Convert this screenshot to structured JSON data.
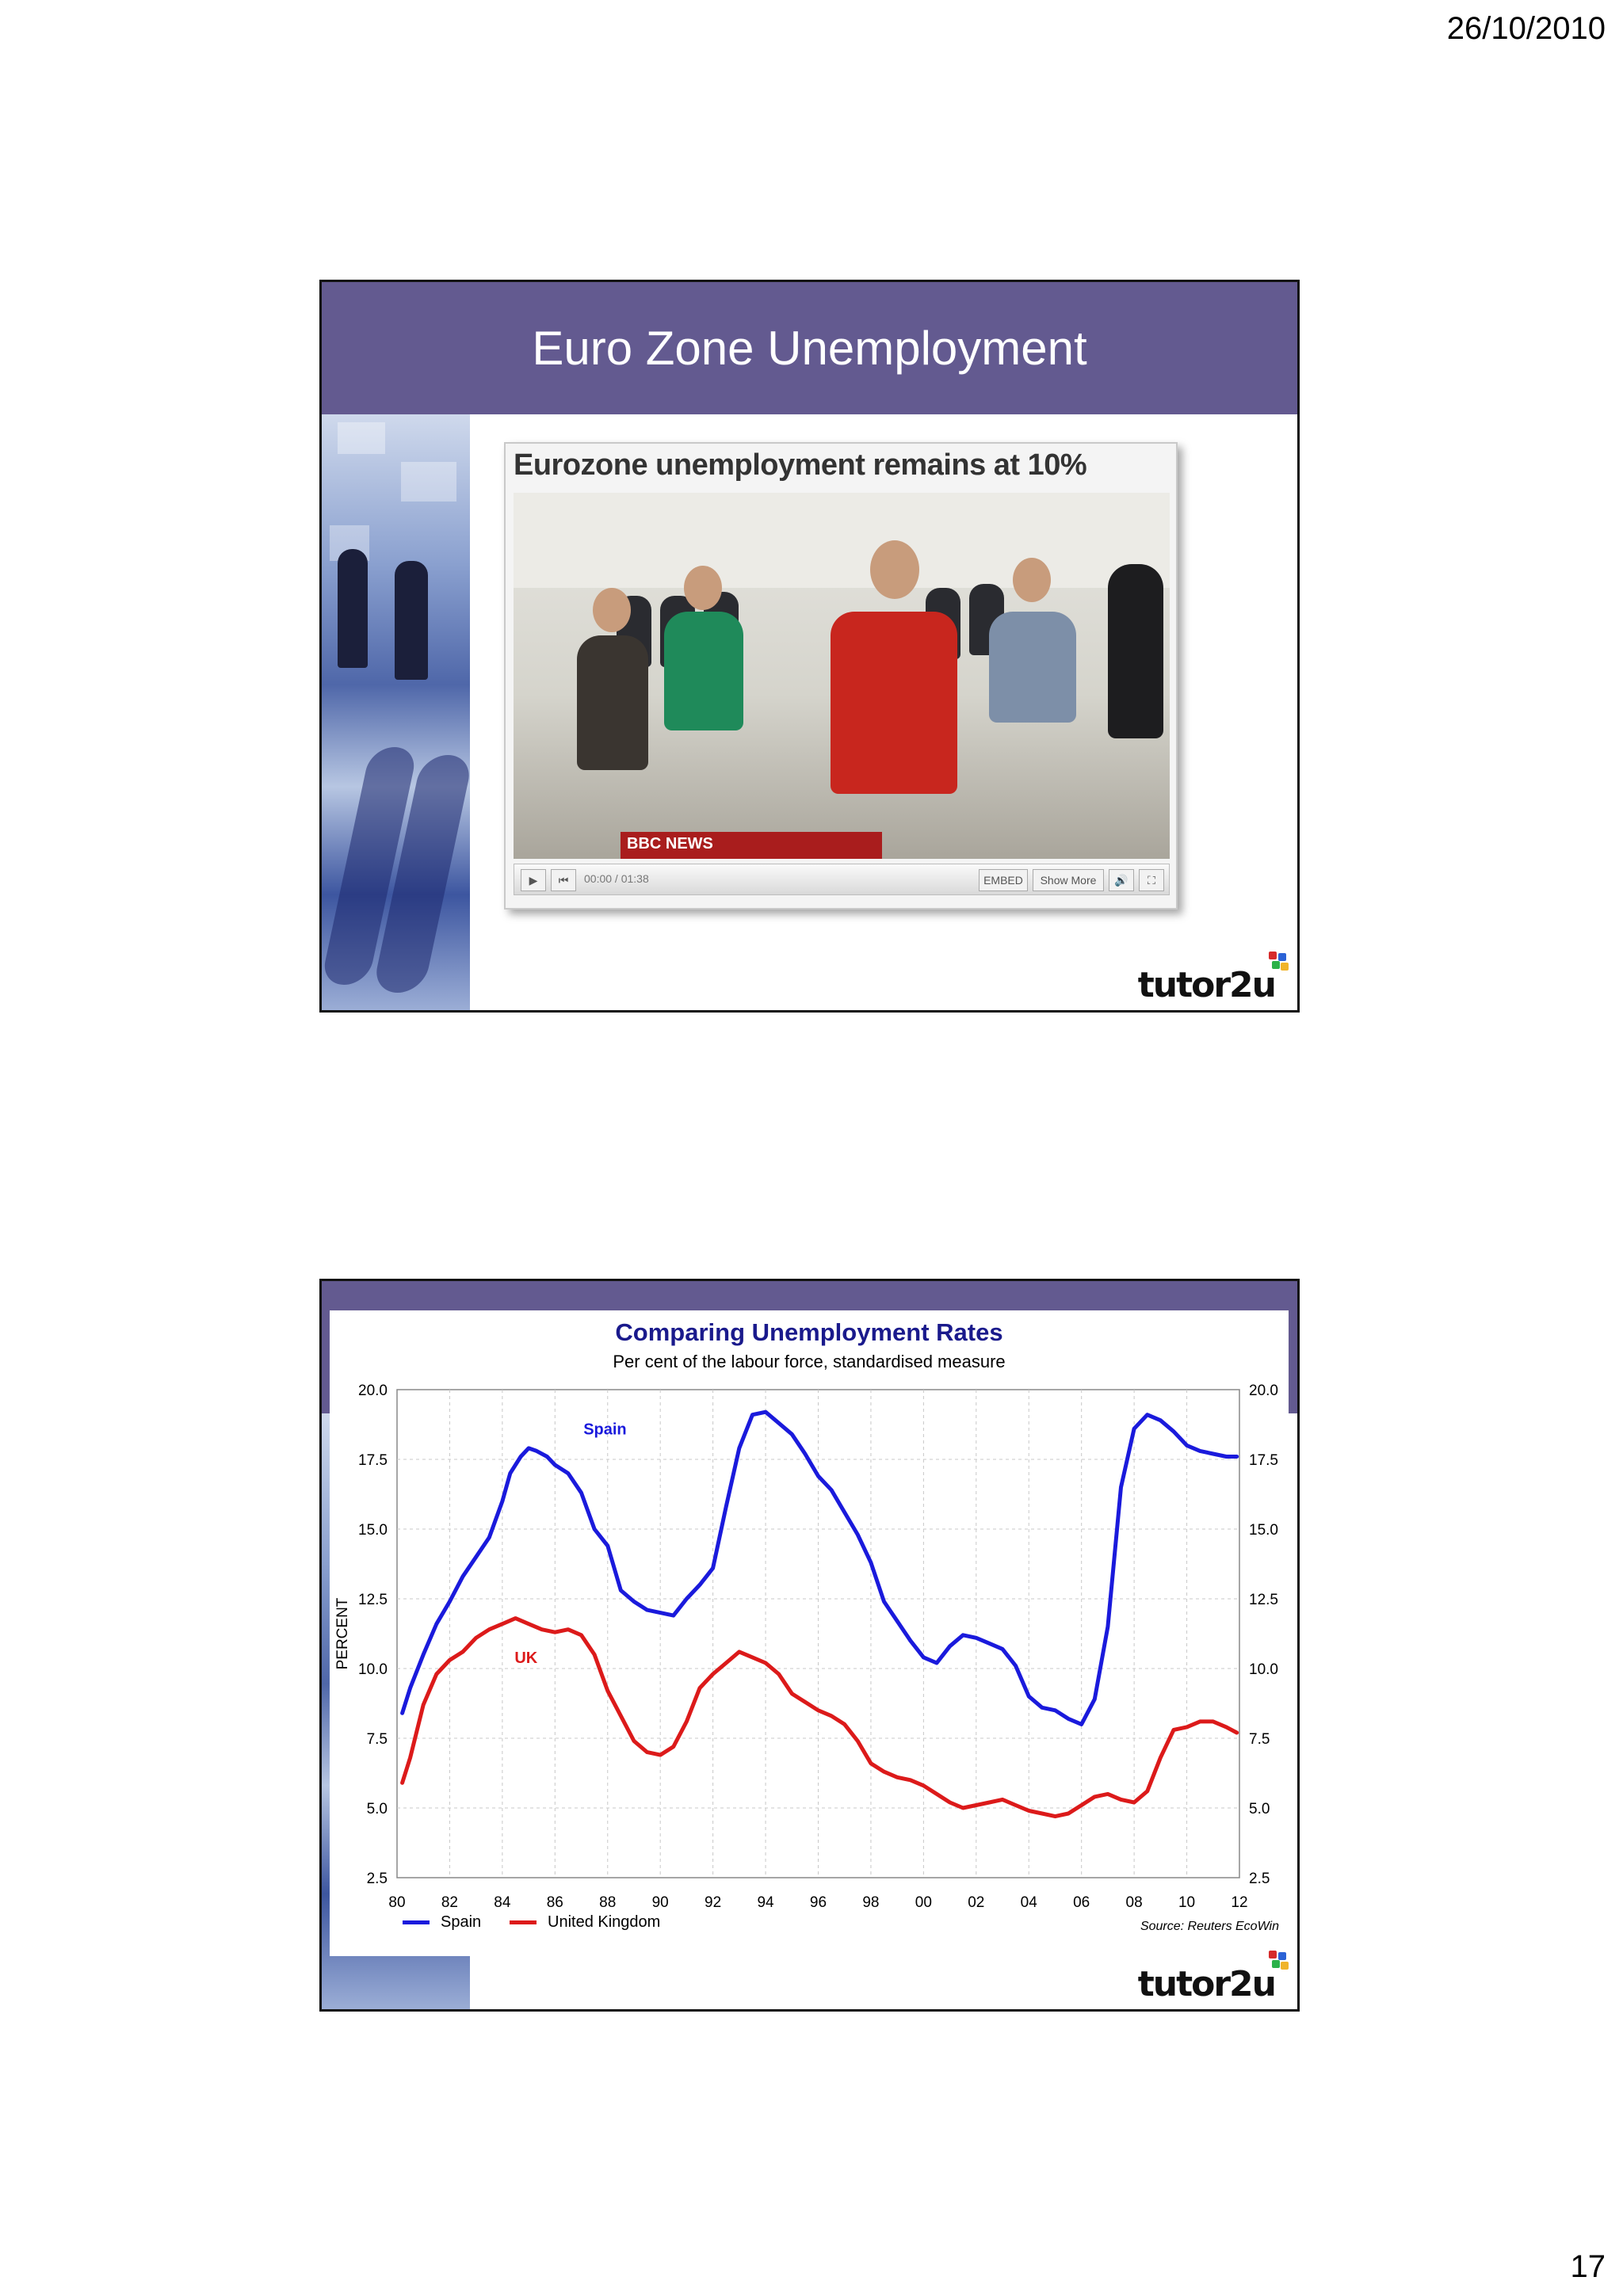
{
  "page": {
    "date": "26/10/2010",
    "number": "17"
  },
  "slide1": {
    "title": "Euro Zone Unemployment",
    "video": {
      "headline": "Eurozone unemployment remains at 10%",
      "channel_label": "BBC NEWS",
      "time": "00:00 / 01:38",
      "embed_label": "EMBED",
      "show_more_label": "Show More"
    },
    "logo": "tutor2u"
  },
  "slide2": {
    "logo": "tutor2u",
    "chart_data": {
      "type": "line",
      "title": "Comparing Unemployment Rates",
      "subtitle": "Per cent of the labour force, standardised measure",
      "ylabel": "PERCENT",
      "xlabel": "",
      "xlim": [
        1980,
        2012
      ],
      "ylim": [
        2.5,
        20.0
      ],
      "x_ticks": [
        "80",
        "82",
        "84",
        "86",
        "88",
        "90",
        "92",
        "94",
        "96",
        "98",
        "00",
        "02",
        "04",
        "06",
        "08",
        "10",
        "12"
      ],
      "y_ticks": [
        "2.5",
        "5.0",
        "7.5",
        "10.0",
        "12.5",
        "15.0",
        "17.5",
        "20.0"
      ],
      "grid": true,
      "legend_placement": "bottom-left",
      "source": "Source: Reuters EcoWin",
      "series": [
        {
          "name": "Spain",
          "label": "Spain",
          "color": "#1a1adc",
          "x": [
            1980.2,
            1980.5,
            1981,
            1981.5,
            1982,
            1982.5,
            1983,
            1983.5,
            1984,
            1984.3,
            1984.7,
            1985,
            1985.3,
            1985.7,
            1986,
            1986.5,
            1987,
            1987.5,
            1988,
            1988.5,
            1989,
            1989.5,
            1990,
            1990.5,
            1991,
            1991.5,
            1992,
            1992.5,
            1993,
            1993.5,
            1994,
            1994.5,
            1995,
            1995.5,
            1996,
            1996.5,
            1997,
            1997.5,
            1998,
            1998.5,
            1999,
            1999.5,
            2000,
            2000.5,
            2001,
            2001.5,
            2002,
            2002.5,
            2003,
            2003.5,
            2004,
            2004.5,
            2005,
            2005.5,
            2006,
            2006.5,
            2007,
            2007.5,
            2008,
            2008.5,
            2009,
            2009.5,
            2010,
            2010.5,
            2011,
            2011.5,
            2011.9
          ],
          "y": [
            8.4,
            9.3,
            10.5,
            11.6,
            12.4,
            13.3,
            14.0,
            14.7,
            16.0,
            17.0,
            17.6,
            17.9,
            17.8,
            17.6,
            17.3,
            17.0,
            16.3,
            15.0,
            14.4,
            12.8,
            12.4,
            12.1,
            12.0,
            11.9,
            12.5,
            13.0,
            13.6,
            15.8,
            17.9,
            19.1,
            19.2,
            18.8,
            18.4,
            17.7,
            16.9,
            16.4,
            15.6,
            14.8,
            13.8,
            12.4,
            11.7,
            11.0,
            10.4,
            10.2,
            10.8,
            11.2,
            11.1,
            10.9,
            10.7,
            10.1,
            9.0,
            8.6,
            8.5,
            8.2,
            8.0,
            8.9,
            11.5,
            16.5,
            18.6,
            19.1,
            18.9,
            18.5,
            18.0,
            17.8,
            17.7,
            17.6,
            17.6
          ]
        },
        {
          "name": "United Kingdom",
          "label": "UK",
          "color": "#dc1a1a",
          "x": [
            1980.2,
            1980.5,
            1981,
            1981.5,
            1982,
            1982.5,
            1983,
            1983.5,
            1984,
            1984.5,
            1985,
            1985.5,
            1986,
            1986.5,
            1987,
            1987.5,
            1988,
            1988.5,
            1989,
            1989.5,
            1990,
            1990.5,
            1991,
            1991.5,
            1992,
            1992.5,
            1993,
            1993.5,
            1994,
            1994.5,
            1995,
            1995.5,
            1996,
            1996.5,
            1997,
            1997.5,
            1998,
            1998.5,
            1999,
            1999.5,
            2000,
            2000.5,
            2001,
            2001.5,
            2002,
            2002.5,
            2003,
            2003.5,
            2004,
            2004.5,
            2005,
            2005.5,
            2006,
            2006.5,
            2007,
            2007.5,
            2008,
            2008.5,
            2009,
            2009.5,
            2010,
            2010.5,
            2011,
            2011.5,
            2011.9
          ],
          "y": [
            5.9,
            6.8,
            8.7,
            9.8,
            10.3,
            10.6,
            11.1,
            11.4,
            11.6,
            11.8,
            11.6,
            11.4,
            11.3,
            11.4,
            11.2,
            10.5,
            9.2,
            8.3,
            7.4,
            7.0,
            6.9,
            7.2,
            8.1,
            9.3,
            9.8,
            10.2,
            10.6,
            10.4,
            10.2,
            9.8,
            9.1,
            8.8,
            8.5,
            8.3,
            8.0,
            7.4,
            6.6,
            6.3,
            6.1,
            6.0,
            5.8,
            5.5,
            5.2,
            5.0,
            5.1,
            5.2,
            5.3,
            5.1,
            4.9,
            4.8,
            4.7,
            4.8,
            5.1,
            5.4,
            5.5,
            5.3,
            5.2,
            5.6,
            6.8,
            7.8,
            7.9,
            8.1,
            8.1,
            7.9,
            7.7
          ]
        }
      ]
    }
  }
}
